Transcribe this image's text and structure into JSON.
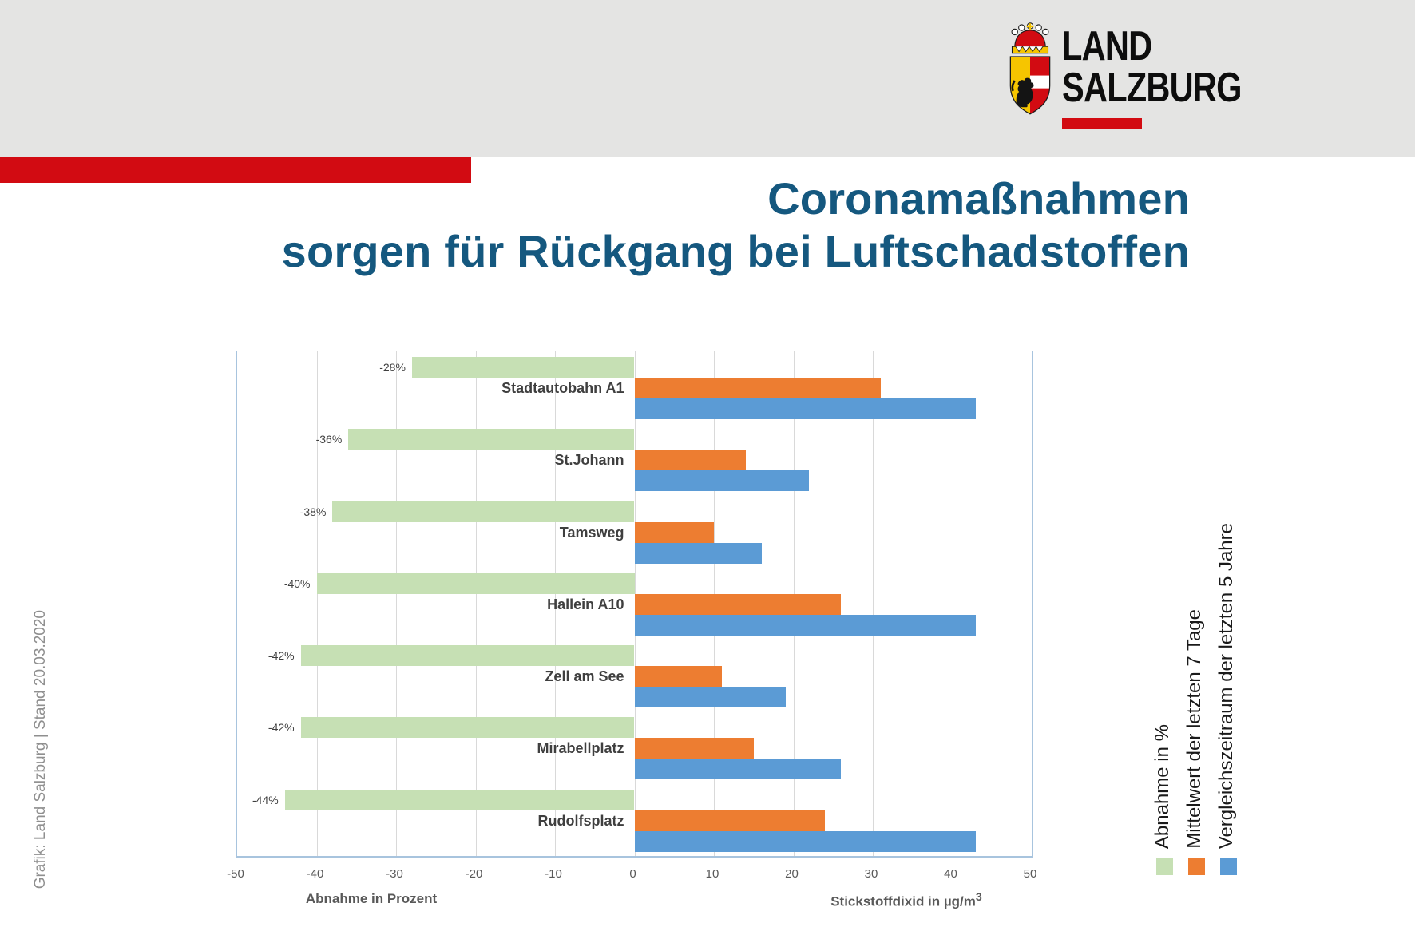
{
  "header": {
    "logo": {
      "line1": "LAND",
      "line2": "SALZBURG"
    }
  },
  "title": {
    "line1": "Coronamaßnahmen",
    "line2": "sorgen für Rückgang bei Luftschadstoffen"
  },
  "credit": "Grafik: Land Salzburg | Stand 20.03.2020",
  "colors": {
    "brand_red": "#d20b12",
    "title_blue": "#15587f",
    "header_gray": "#e4e4e3",
    "series_green": "#c6e0b4",
    "series_orange": "#ed7d31",
    "series_blue": "#5b9bd5",
    "gridline": "#d9d9d9",
    "plot_border": "#a8c4de"
  },
  "chart_data": {
    "type": "bar",
    "orientation": "horizontal",
    "categories": [
      "Stadtautobahn A1",
      "St.Johann",
      "Tamsweg",
      "Hallein A10",
      "Zell am See",
      "Mirabellplatz",
      "Rudolfsplatz"
    ],
    "series": [
      {
        "name": "Abnahme in %",
        "color": "#c6e0b4",
        "values": [
          -28,
          -36,
          -38,
          -40,
          -42,
          -42,
          -44
        ],
        "labels": [
          "-28%",
          "-36%",
          "-38%",
          "-40%",
          "-42%",
          "-42%",
          "-44%"
        ]
      },
      {
        "name": "Mittelwert der letzten 7 Tage",
        "color": "#ed7d31",
        "values": [
          31,
          14,
          10,
          26,
          11,
          15,
          24
        ]
      },
      {
        "name": "Vergleichszeitraum der letzten 5 Jahre",
        "color": "#5b9bd5",
        "values": [
          43,
          22,
          16,
          43,
          19,
          26,
          43
        ]
      }
    ],
    "xlim": [
      -50,
      50
    ],
    "xticks": [
      -50,
      -40,
      -30,
      -20,
      -10,
      0,
      10,
      20,
      30,
      40,
      50
    ],
    "xtick_labels": [
      "-50",
      "-40",
      "-30",
      "-20",
      "-10",
      "0",
      "10",
      "20",
      "30",
      "40",
      "50"
    ],
    "xlabel_left": "Abnahme in Prozent",
    "xlabel_right": "Stickstoffdixid in µg/m",
    "xlabel_right_sup": "3",
    "grid": true,
    "legend_position": "right-vertical"
  }
}
